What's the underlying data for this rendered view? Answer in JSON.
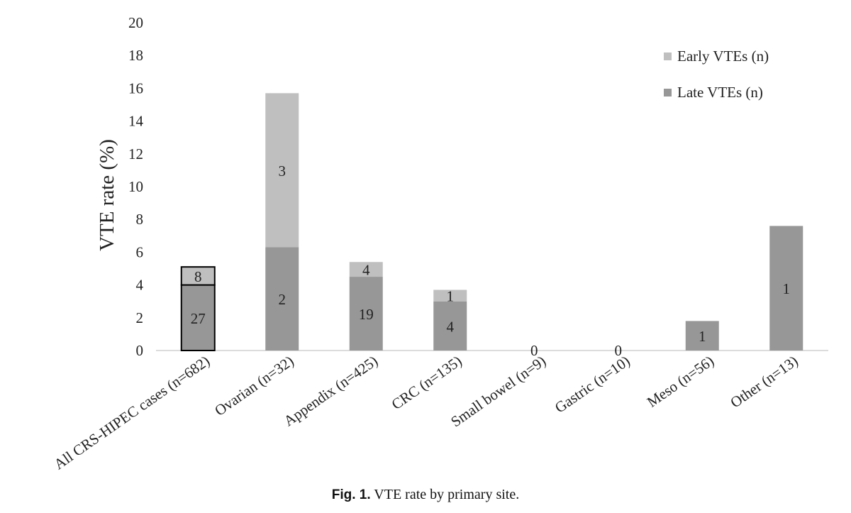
{
  "chart_data": {
    "type": "bar",
    "stacked": true,
    "ylabel": "VTE rate (%)",
    "ylim": [
      0,
      20
    ],
    "yticks": [
      0,
      2,
      4,
      6,
      8,
      10,
      12,
      14,
      16,
      18,
      20
    ],
    "categories": [
      "All CRS-HIPEC cases (n=682)",
      "Ovarian (n=32)",
      "Appendix (n=425)",
      "CRC (n=135)",
      "Small bowel (n=9)",
      "Gastric (n=10)",
      "Meso (n=56)",
      "Other (n=13)"
    ],
    "series": [
      {
        "name": "Late VTEs (n)",
        "color": "#979797",
        "values": [
          4.0,
          6.3,
          4.5,
          3.0,
          0,
          0,
          1.8,
          7.6
        ],
        "labels": [
          "27",
          "2",
          "19",
          "4",
          "0",
          "0",
          "1",
          "1"
        ]
      },
      {
        "name": "Early VTEs (n)",
        "color": "#bfbfbf",
        "values": [
          1.1,
          9.4,
          0.9,
          0.7,
          0,
          0,
          0,
          0
        ],
        "labels": [
          "8",
          "3",
          "4",
          "1",
          "",
          "",
          "",
          ""
        ]
      }
    ],
    "legend": [
      {
        "label": "Early VTEs (n)",
        "color": "#bfbfbf"
      },
      {
        "label": "Late VTEs (n)",
        "color": "#979797"
      }
    ],
    "legend_position": "top-right",
    "outlined_categories": [
      0
    ]
  },
  "caption": {
    "prefix": "Fig. 1.",
    "text": "VTE rate by primary site."
  }
}
